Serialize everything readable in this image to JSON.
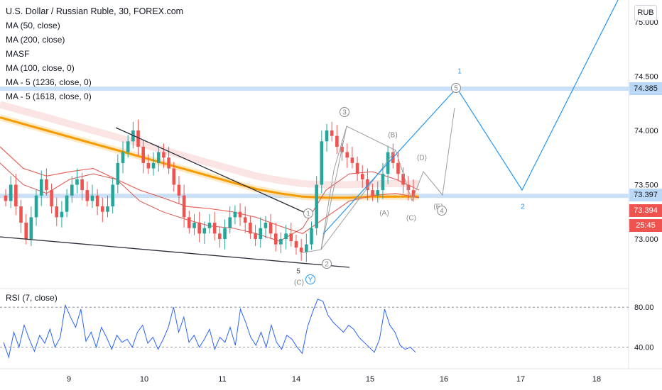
{
  "header": {
    "title": "U.S. Dollar / Russian Ruble, 30, FOREX.com",
    "indicators": [
      "MA (50, close)",
      "MA (200, close)",
      "MASF",
      "MA (100, close, 0)",
      "MA - 5 (1236, close, 0)",
      "MA - 5 (1618, close, 0)"
    ]
  },
  "currency_button": "RUB",
  "price_labels": {
    "level_blue_top": "74.385",
    "level_blue_mid": "73.397",
    "last_price": "73.394",
    "countdown": "25:45"
  },
  "rsi_title": "RSI (7, close)",
  "colors": {
    "candle_up": "#26a69a",
    "candle_down": "#ef5350",
    "ma_orange": "#f59b00",
    "ma_red": "#e8645a",
    "projection": "#2196f3",
    "level_line": "#9ec6ee",
    "rsi_line": "#2962ff"
  },
  "chart_data": [
    {
      "type": "candlestick",
      "symbol": "USDRUB",
      "timeframe": "30",
      "x_labels": [
        "9",
        "10",
        "11",
        "14",
        "15",
        "16",
        "17",
        "18"
      ],
      "y_ticks": [
        "75.000",
        "74.500",
        "74.000",
        "73.500",
        "73.000"
      ],
      "ylim": [
        72.75,
        75.1
      ],
      "horizontal_levels": [
        74.385,
        73.397
      ],
      "last_price": 73.394,
      "candles_close": [
        73.35,
        73.5,
        73.3,
        73.15,
        73.0,
        73.2,
        73.4,
        73.55,
        73.45,
        73.3,
        73.2,
        73.25,
        73.4,
        73.5,
        73.55,
        73.45,
        73.35,
        73.4,
        73.3,
        73.25,
        73.3,
        73.5,
        73.7,
        73.8,
        73.9,
        74.0,
        73.85,
        73.7,
        73.65,
        73.7,
        73.8,
        73.75,
        73.65,
        73.5,
        73.4,
        73.2,
        73.1,
        73.15,
        73.05,
        73.1,
        73.15,
        73.05,
        73.0,
        73.1,
        73.2,
        73.25,
        73.2,
        73.15,
        73.05,
        73.0,
        73.1,
        73.15,
        73.05,
        72.95,
        73.0,
        73.05,
        72.98,
        72.92,
        72.88,
        72.95,
        73.1,
        73.5,
        73.9,
        74.0,
        73.95,
        73.85,
        73.8,
        73.75,
        73.7,
        73.6,
        73.55,
        73.45,
        73.4,
        73.45,
        73.6,
        73.8,
        73.7,
        73.6,
        73.5,
        73.45,
        73.394
      ],
      "moving_averages": [
        {
          "name": "MA (200, close)",
          "values": [
            74.12,
            74.06,
            74.0,
            73.94,
            73.88,
            73.82,
            73.76,
            73.7,
            73.64,
            73.58,
            73.52,
            73.46,
            73.42,
            73.39,
            73.38,
            73.38,
            73.39,
            73.39,
            73.39
          ]
        },
        {
          "name": "MA (100, close, 0)",
          "values": [
            73.85,
            73.65,
            73.58,
            73.62,
            73.65,
            73.55,
            73.45,
            73.38,
            73.3,
            73.28,
            73.25,
            73.2,
            73.12,
            73.05,
            73.2,
            73.35,
            73.4,
            73.42,
            73.38
          ]
        },
        {
          "name": "MA (50, close)",
          "values": [
            73.7,
            73.5,
            73.42,
            73.55,
            73.6,
            73.55,
            73.35,
            73.25,
            73.18,
            73.12,
            73.1,
            73.05,
            72.98,
            73.1,
            73.45,
            73.6,
            73.62,
            73.55,
            73.45
          ]
        }
      ],
      "wave_labels": [
        "1",
        "2",
        "3",
        "4",
        "5",
        "(A)",
        "(B)",
        "(C)",
        "(D)",
        "(E)",
        "1",
        "2",
        "5",
        "Y"
      ],
      "rsi": {
        "name": "RSI (7, close)",
        "y_ticks": [
          "80.00",
          "40.00"
        ],
        "ylim": [
          20,
          95
        ],
        "values": [
          45,
          30,
          55,
          40,
          62,
          48,
          36,
          52,
          44,
          58,
          40,
          50,
          82,
          70,
          60,
          78,
          46,
          55,
          40,
          60,
          50,
          38,
          52,
          45,
          48,
          40,
          55,
          62,
          44,
          50,
          38,
          48,
          60,
          80,
          55,
          70,
          45,
          52,
          40,
          48,
          58,
          38,
          50,
          45,
          60,
          42,
          78,
          65,
          50,
          42,
          55,
          40,
          62,
          45,
          38,
          52,
          48,
          40,
          34,
          60,
          75,
          88,
          86,
          72,
          65,
          60,
          55,
          62,
          58,
          50,
          45,
          40,
          35,
          48,
          78,
          62,
          55,
          42,
          38,
          40,
          35
        ]
      }
    }
  ]
}
